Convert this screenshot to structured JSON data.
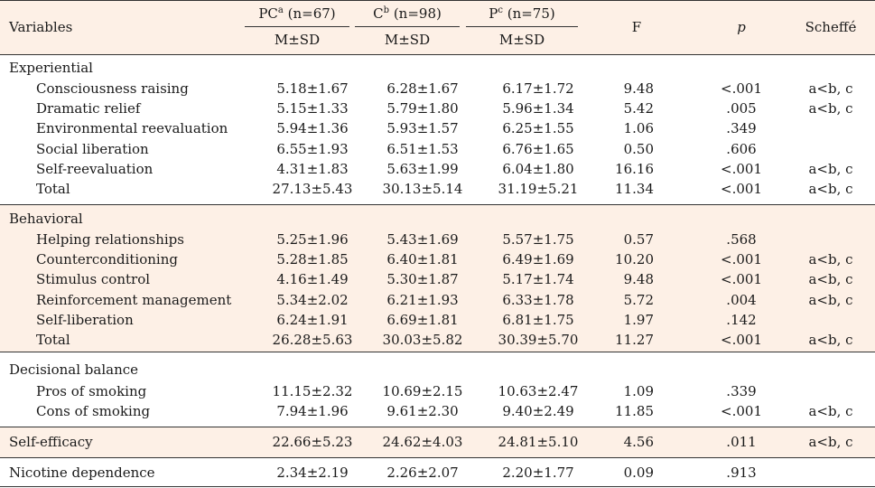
{
  "header": {
    "variables": "Variables",
    "pc": {
      "name": "PC",
      "sup": "a",
      "n": " (n=67)"
    },
    "c": {
      "name": "C",
      "sup": "b",
      "n": " (n=98)"
    },
    "p": {
      "name": "P",
      "sup": "c",
      "n": " (n=75)"
    },
    "msd": "M±SD",
    "f": "F",
    "pval": "p",
    "scheffe": "Scheffé"
  },
  "sections": [
    {
      "title": "Experiential",
      "rows": [
        {
          "label": "Consciousness raising",
          "pc": "5.18±1.67",
          "c": "6.28±1.67",
          "p": "6.17±1.72",
          "f": "9.48",
          "pv": "<.001",
          "s": "a<b, c"
        },
        {
          "label": "Dramatic relief",
          "pc": "5.15±1.33",
          "c": "5.79±1.80",
          "p": "5.96±1.34",
          "f": "5.42",
          "pv": ".005",
          "s": "a<b, c"
        },
        {
          "label": "Environmental reevaluation",
          "pc": "5.94±1.36",
          "c": "5.93±1.57",
          "p": "6.25±1.55",
          "f": "1.06",
          "pv": ".349",
          "s": ""
        },
        {
          "label": "Social liberation",
          "pc": "6.55±1.93",
          "c": "6.51±1.53",
          "p": "6.76±1.65",
          "f": "0.50",
          "pv": ".606",
          "s": ""
        },
        {
          "label": "Self-reevaluation",
          "pc": "4.31±1.83",
          "c": "5.63±1.99",
          "p": "6.04±1.80",
          "f": "16.16",
          "pv": "<.001",
          "s": "a<b, c"
        },
        {
          "label": "Total",
          "pc": "27.13±5.43",
          "c": "30.13±5.14",
          "p": "31.19±5.21",
          "f": "11.34",
          "pv": "<.001",
          "s": "a<b, c"
        }
      ]
    },
    {
      "title": "Behavioral",
      "rows": [
        {
          "label": "Helping relationships",
          "pc": "5.25±1.96",
          "c": "5.43±1.69",
          "p": "5.57±1.75",
          "f": "0.57",
          "pv": ".568",
          "s": ""
        },
        {
          "label": "Counterconditioning",
          "pc": "5.28±1.85",
          "c": "6.40±1.81",
          "p": "6.49±1.69",
          "f": "10.20",
          "pv": "<.001",
          "s": "a<b, c"
        },
        {
          "label": "Stimulus control",
          "pc": "4.16±1.49",
          "c": "5.30±1.87",
          "p": "5.17±1.74",
          "f": "9.48",
          "pv": "<.001",
          "s": "a<b, c"
        },
        {
          "label": "Reinforcement management",
          "pc": "5.34±2.02",
          "c": "6.21±1.93",
          "p": "6.33±1.78",
          "f": "5.72",
          "pv": ".004",
          "s": "a<b, c"
        },
        {
          "label": "Self-liberation",
          "pc": "6.24±1.91",
          "c": "6.69±1.81",
          "p": "6.81±1.75",
          "f": "1.97",
          "pv": ".142",
          "s": ""
        },
        {
          "label": "Total",
          "pc": "26.28±5.63",
          "c": "30.03±5.82",
          "p": "30.39±5.70",
          "f": "11.27",
          "pv": "<.001",
          "s": "a<b, c"
        }
      ]
    },
    {
      "title": "Decisional balance",
      "rows": [
        {
          "label": "Pros of smoking",
          "pc": "11.15±2.32",
          "c": "10.69±2.15",
          "p": "10.63±2.47",
          "f": "1.09",
          "pv": ".339",
          "s": ""
        },
        {
          "label": "Cons of smoking",
          "pc": "7.94±1.96",
          "c": "9.61±2.30",
          "p": "9.40±2.49",
          "f": "11.85",
          "pv": "<.001",
          "s": "a<b, c"
        }
      ]
    }
  ],
  "single_rows": [
    {
      "label": "Self-efficacy",
      "pc": "22.66±5.23",
      "c": "24.62±4.03",
      "p": "24.81±5.10",
      "f": "4.56",
      "pv": ".011",
      "s": "a<b, c"
    },
    {
      "label": "Nicotine dependence",
      "pc": "2.34±2.19",
      "c": "2.26±2.07",
      "p": "2.20±1.77",
      "f": "0.09",
      "pv": ".913",
      "s": ""
    }
  ]
}
